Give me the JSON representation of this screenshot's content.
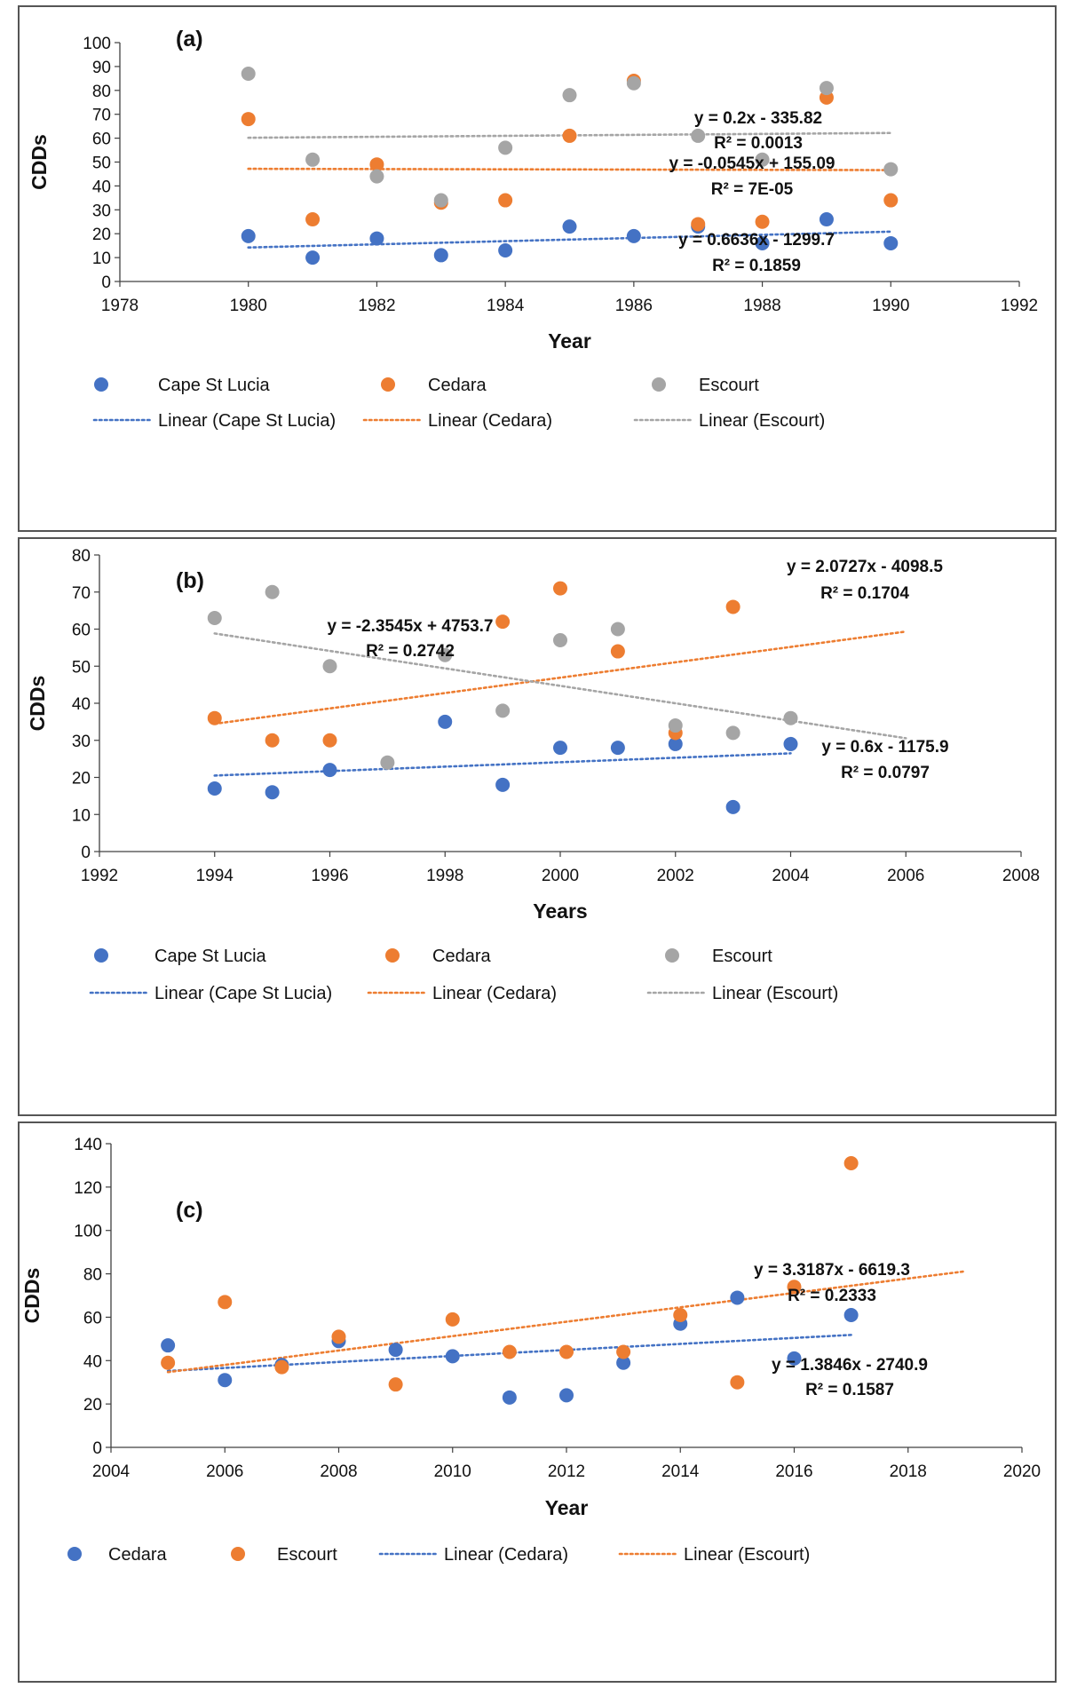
{
  "colors": {
    "blue": "#4472C4",
    "orange": "#ED7D31",
    "gray": "#A5A5A5",
    "axis": "#404040",
    "text": "#111111"
  },
  "chart_data": [
    {
      "type": "scatter",
      "panel_label": "(a)",
      "xlabel": "Year",
      "ylabel": "CDDs",
      "xlim": [
        1978,
        1992
      ],
      "ylim": [
        0,
        100
      ],
      "xticks": [
        1978,
        1980,
        1982,
        1984,
        1986,
        1988,
        1990,
        1992
      ],
      "yticks": [
        0,
        10,
        20,
        30,
        40,
        50,
        60,
        70,
        80,
        90,
        100
      ],
      "legend_position": "bottom",
      "series": [
        {
          "name": "Cape St Lucia",
          "color": "#4472C4",
          "x": [
            1980,
            1981,
            1982,
            1983,
            1984,
            1985,
            1986,
            1987,
            1988,
            1989,
            1990
          ],
          "y": [
            19,
            10,
            18,
            11,
            13,
            23,
            19,
            23,
            16,
            26,
            16
          ]
        },
        {
          "name": "Cedara",
          "color": "#ED7D31",
          "x": [
            1980,
            1981,
            1982,
            1983,
            1984,
            1985,
            1986,
            1987,
            1988,
            1989,
            1990
          ],
          "y": [
            68,
            26,
            49,
            33,
            34,
            61,
            84,
            24,
            25,
            77,
            34
          ]
        },
        {
          "name": "Escourt",
          "color": "#A5A5A5",
          "x": [
            1980,
            1981,
            1982,
            1983,
            1984,
            1985,
            1986,
            1987,
            1988,
            1989,
            1990
          ],
          "y": [
            87,
            51,
            44,
            34,
            56,
            78,
            83,
            61,
            51,
            81,
            47
          ]
        }
      ],
      "trendlines": [
        {
          "name": "Linear (Cape St Lucia)",
          "color": "#4472C4",
          "slope": 0.6636,
          "intercept": -1299.7,
          "x_range": [
            1980,
            1990
          ],
          "equation": "y = 0.6636x - 1299.7",
          "r2": "R² = 0.1859"
        },
        {
          "name": "Linear (Cedara)",
          "color": "#ED7D31",
          "slope": -0.0545,
          "intercept": 155.09,
          "x_range": [
            1980,
            1990
          ],
          "equation": "y = -0.0545x + 155.09",
          "r2": "R² = 7E-05"
        },
        {
          "name": "Linear (Escourt)",
          "color": "#A5A5A5",
          "slope": 0.2,
          "intercept": -335.82,
          "x_range": [
            1980,
            1990
          ],
          "equation": "y = 0.2x - 335.82",
          "r2": "R² = 0.0013"
        }
      ]
    },
    {
      "type": "scatter",
      "panel_label": "(b)",
      "xlabel": "Years",
      "ylabel": "CDDs",
      "xlim": [
        1992,
        2008
      ],
      "ylim": [
        0,
        80
      ],
      "xticks": [
        1992,
        1994,
        1996,
        1998,
        2000,
        2002,
        2004,
        2006,
        2008
      ],
      "yticks": [
        0,
        10,
        20,
        30,
        40,
        50,
        60,
        70,
        80
      ],
      "legend_position": "bottom",
      "series": [
        {
          "name": "Cape St Lucia",
          "color": "#4472C4",
          "x": [
            1994,
            1995,
            1996,
            1998,
            1999,
            2000,
            2001,
            2002,
            2003,
            2004
          ],
          "y": [
            17,
            16,
            22,
            35,
            18,
            28,
            28,
            29,
            12,
            29
          ]
        },
        {
          "name": "Cedara",
          "color": "#ED7D31",
          "x": [
            1994,
            1995,
            1996,
            1999,
            2000,
            2001,
            2002,
            2003
          ],
          "y": [
            36,
            30,
            30,
            62,
            71,
            54,
            32,
            66
          ]
        },
        {
          "name": "Escourt",
          "color": "#A5A5A5",
          "x": [
            1994,
            1995,
            1996,
            1997,
            1998,
            1999,
            2000,
            2001,
            2002,
            2003,
            2004
          ],
          "y": [
            63,
            70,
            50,
            24,
            53,
            38,
            57,
            60,
            34,
            32,
            36
          ]
        }
      ],
      "trendlines": [
        {
          "name": "Linear (Cape St Lucia)",
          "color": "#4472C4",
          "slope": 0.6,
          "intercept": -1175.9,
          "x_range": [
            1994,
            2004
          ],
          "equation": "y = 0.6x - 1175.9",
          "r2": "R² = 0.0797"
        },
        {
          "name": "Linear (Cedara)",
          "color": "#ED7D31",
          "slope": 2.0727,
          "intercept": -4098.5,
          "x_range": [
            1994,
            2006
          ],
          "equation": "y = 2.0727x - 4098.5",
          "r2": "R² = 0.1704"
        },
        {
          "name": "Linear (Escourt)",
          "color": "#A5A5A5",
          "slope": -2.3545,
          "intercept": 4753.7,
          "x_range": [
            1994,
            2006
          ],
          "equation": "y = -2.3545x + 4753.7",
          "r2": "R² = 0.2742"
        }
      ]
    },
    {
      "type": "scatter",
      "panel_label": "(c)",
      "xlabel": "Year",
      "ylabel": "CDDs",
      "xlim": [
        2004,
        2020
      ],
      "ylim": [
        0,
        140
      ],
      "xticks": [
        2004,
        2006,
        2008,
        2010,
        2012,
        2014,
        2016,
        2018,
        2020
      ],
      "yticks": [
        0,
        20,
        40,
        60,
        80,
        100,
        120,
        140
      ],
      "legend_position": "bottom",
      "series": [
        {
          "name": "Cedara",
          "color": "#4472C4",
          "x": [
            2005,
            2006,
            2007,
            2008,
            2009,
            2010,
            2011,
            2012,
            2013,
            2014,
            2015,
            2016,
            2017
          ],
          "y": [
            47,
            31,
            38,
            49,
            45,
            42,
            23,
            24,
            39,
            57,
            69,
            41,
            61
          ]
        },
        {
          "name": "Escourt",
          "color": "#ED7D31",
          "x": [
            2005,
            2006,
            2007,
            2008,
            2009,
            2010,
            2011,
            2012,
            2013,
            2014,
            2015,
            2016,
            2017
          ],
          "y": [
            39,
            67,
            37,
            51,
            29,
            59,
            44,
            44,
            44,
            61,
            30,
            74,
            131
          ]
        }
      ],
      "trendlines": [
        {
          "name": "Linear (Cedara)",
          "color": "#4472C4",
          "slope": 1.3846,
          "intercept": -2740.9,
          "x_range": [
            2005,
            2017
          ],
          "equation": "y = 1.3846x - 2740.9",
          "r2": "R² = 0.1587"
        },
        {
          "name": "Linear (Escourt)",
          "color": "#ED7D31",
          "slope": 3.3187,
          "intercept": -6619.3,
          "x_range": [
            2005,
            2019
          ],
          "equation": "y = 3.3187x - 6619.3",
          "r2": "R² = 0.2333"
        }
      ]
    }
  ]
}
